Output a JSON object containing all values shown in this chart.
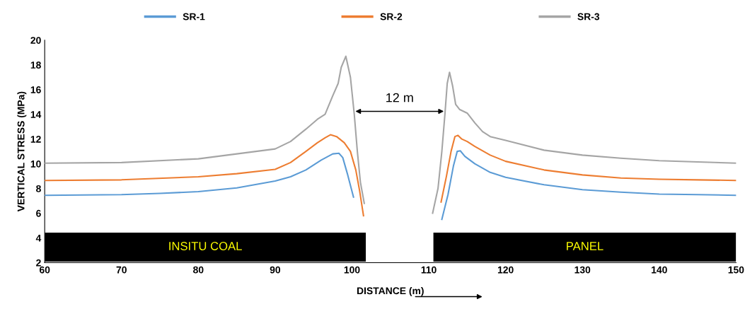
{
  "chart_data": {
    "type": "line",
    "xlabel": "DISTANCE (m)",
    "ylabel": "VERTICAL STRESS (MPa)",
    "xlim": [
      60,
      150
    ],
    "xticks": [
      60,
      70,
      80,
      90,
      100,
      110,
      120,
      130,
      140,
      150
    ],
    "ylim": [
      2,
      20
    ],
    "yticks": [
      2,
      4,
      6,
      8,
      10,
      12,
      14,
      16,
      18,
      20
    ],
    "grid": false,
    "legend": "top",
    "marker": "none",
    "line_style": "solid",
    "series": [
      {
        "name": "SR-1",
        "color": "#5b9bd5",
        "x": [
          60,
          70,
          75,
          80,
          85,
          90,
          92,
          94,
          96,
          97.5,
          98.3,
          98.8,
          99.4,
          100.2,
          105,
          111.7,
          112.5,
          113.2,
          113.7,
          114.1,
          114.7,
          116,
          118,
          120,
          125,
          130,
          135,
          140,
          145,
          150
        ],
        "values": [
          7.45,
          7.5,
          7.6,
          7.75,
          8.05,
          8.6,
          8.95,
          9.5,
          10.3,
          10.8,
          10.85,
          10.5,
          9.2,
          7.3,
          null,
          5.5,
          7.5,
          9.8,
          11.0,
          11.05,
          10.6,
          10.0,
          9.3,
          8.9,
          8.3,
          7.9,
          7.7,
          7.55,
          7.5,
          7.45
        ]
      },
      {
        "name": "SR-2",
        "color": "#ed7d31",
        "x": [
          60,
          70,
          80,
          85,
          90,
          92,
          94,
          95.5,
          96.5,
          97.2,
          98,
          99,
          99.8,
          100.5,
          101,
          101.5,
          105,
          111.6,
          112.3,
          112.9,
          113.4,
          113.8,
          114.3,
          115,
          116,
          118,
          120,
          125,
          130,
          135,
          140,
          145,
          150
        ],
        "values": [
          8.65,
          8.7,
          8.95,
          9.2,
          9.55,
          10.1,
          11.0,
          11.7,
          12.1,
          12.35,
          12.2,
          11.7,
          11.0,
          9.5,
          7.8,
          5.8,
          null,
          6.9,
          9.0,
          11.0,
          12.2,
          12.3,
          12.0,
          11.8,
          11.4,
          10.7,
          10.2,
          9.5,
          9.1,
          8.85,
          8.75,
          8.7,
          8.65
        ]
      },
      {
        "name": "SR-3",
        "color": "#a5a5a5",
        "x": [
          60,
          70,
          80,
          85,
          90,
          92,
          94,
          95.5,
          96.5,
          97.5,
          98.2,
          98.6,
          99.2,
          99.8,
          100.3,
          100.7,
          101.1,
          101.6,
          105,
          110.5,
          111.2,
          111.7,
          112.1,
          112.4,
          112.7,
          113.1,
          113.5,
          114,
          115,
          116,
          117,
          118,
          120,
          125,
          130,
          135,
          140,
          145,
          150
        ],
        "values": [
          10.05,
          10.1,
          10.4,
          10.8,
          11.2,
          11.8,
          12.8,
          13.6,
          14.0,
          15.5,
          16.5,
          17.8,
          18.7,
          17.0,
          14.0,
          11.0,
          8.5,
          6.8,
          null,
          6.0,
          8.0,
          11.0,
          14.0,
          16.5,
          17.4,
          16.3,
          14.8,
          14.4,
          14.1,
          13.3,
          12.6,
          12.2,
          11.9,
          11.1,
          10.7,
          10.45,
          10.25,
          10.15,
          10.05
        ]
      }
    ],
    "bands": [
      {
        "axis": "x",
        "from": 60,
        "to": 101.8,
        "label": "INSITU COAL",
        "color": "#000000"
      },
      {
        "axis": "x",
        "from": 110.6,
        "to": 150,
        "label": "PANEL",
        "color": "#000000"
      }
    ],
    "annotations": [
      "12 m"
    ]
  }
}
